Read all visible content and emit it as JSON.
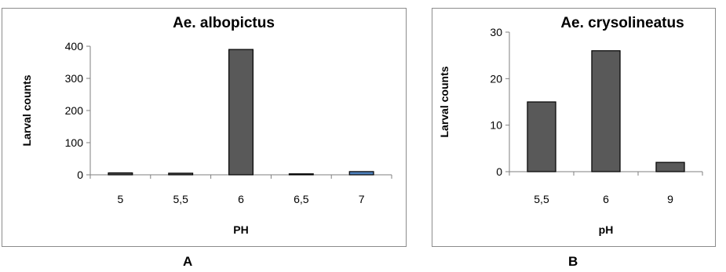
{
  "chart_data": [
    {
      "panel_letter": "A",
      "type": "bar",
      "title": "Ae. albopictus",
      "xlabel": "PH",
      "ylabel": "Larval counts",
      "categories": [
        "5",
        "5,5",
        "6",
        "6,5",
        "7"
      ],
      "values": [
        6,
        5,
        390,
        3,
        10
      ],
      "bar_colors": [
        "#595959",
        "#595959",
        "#595959",
        "#595959",
        "#4f81bd"
      ],
      "yticks": [
        "0",
        "100",
        "200",
        "300",
        "400"
      ],
      "ylim": [
        0,
        400
      ],
      "grid": false
    },
    {
      "panel_letter": "B",
      "type": "bar",
      "title": "Ae. crysolineatus",
      "xlabel": "pH",
      "ylabel": "Larval counts",
      "categories": [
        "5,5",
        "6",
        "9"
      ],
      "values": [
        15,
        26,
        2
      ],
      "bar_colors": [
        "#595959",
        "#595959",
        "#595959"
      ],
      "yticks": [
        "0",
        "10",
        "20",
        "30"
      ],
      "ylim": [
        0,
        30
      ],
      "grid": false
    }
  ]
}
